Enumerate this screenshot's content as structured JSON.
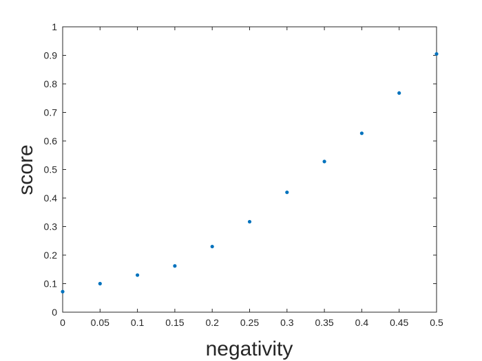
{
  "chart_data": {
    "type": "scatter",
    "title": "",
    "xlabel": "negativity",
    "ylabel": "score",
    "xlim": [
      0,
      0.5
    ],
    "ylim": [
      0,
      1
    ],
    "x_ticks": [
      "0",
      "0.05",
      "0.1",
      "0.15",
      "0.2",
      "0.25",
      "0.3",
      "0.35",
      "0.4",
      "0.45",
      "0.5"
    ],
    "y_ticks": [
      "0",
      "0.1",
      "0.2",
      "0.3",
      "0.4",
      "0.5",
      "0.6",
      "0.7",
      "0.8",
      "0.9",
      "1"
    ],
    "grid": false,
    "marker_color": "#0072BD",
    "series": [
      {
        "x": [
          0,
          0.05,
          0.1,
          0.15,
          0.2,
          0.25,
          0.3,
          0.35,
          0.4,
          0.45,
          0.5
        ],
        "y": [
          0.072,
          0.1,
          0.13,
          0.162,
          0.23,
          0.317,
          0.42,
          0.528,
          0.627,
          0.768,
          0.905
        ]
      }
    ]
  }
}
